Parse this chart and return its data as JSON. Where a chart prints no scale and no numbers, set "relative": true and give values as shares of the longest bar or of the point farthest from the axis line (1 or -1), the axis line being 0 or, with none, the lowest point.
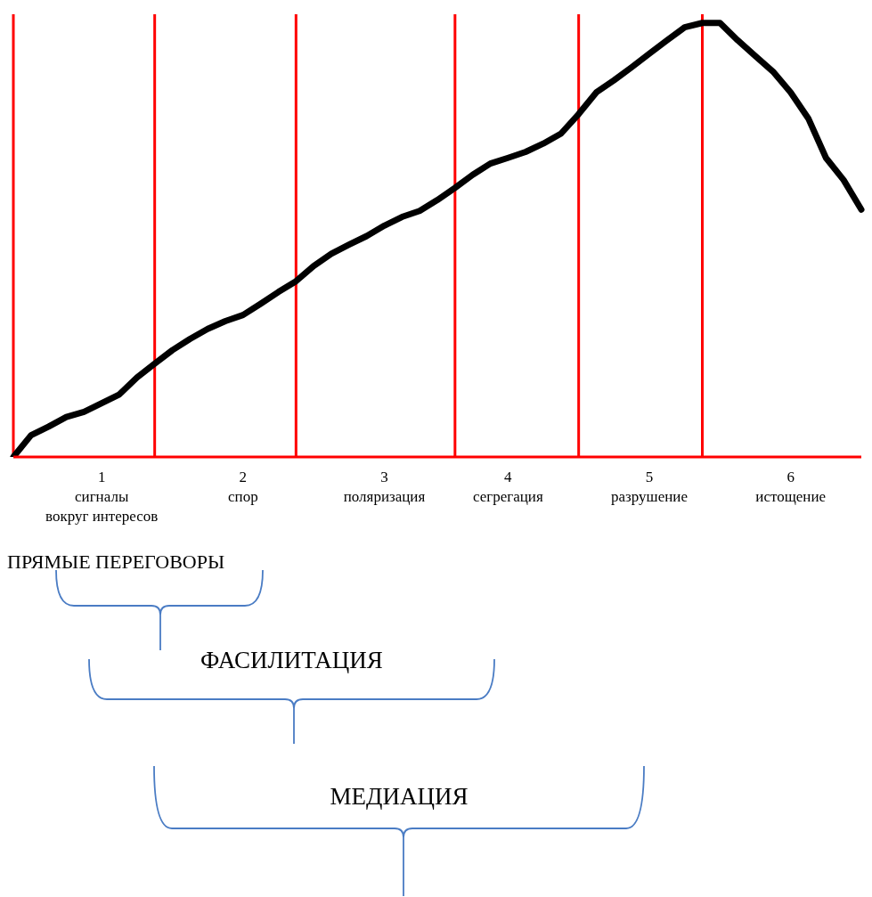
{
  "chart_data": {
    "type": "line",
    "relative": true,
    "categories": [
      null,
      null,
      null,
      null,
      null,
      "1\nсигналы\nвокруг интересов",
      null,
      null,
      null,
      null,
      null,
      null,
      null,
      "2\nспор",
      null,
      null,
      null,
      null,
      null,
      null,
      null,
      "3\nполяризация",
      null,
      null,
      null,
      null,
      null,
      null,
      "4\nсегрегация",
      null,
      null,
      null,
      null,
      null,
      null,
      null,
      "5\nразрушение",
      null,
      null,
      null,
      null,
      null,
      null,
      null,
      "6\nистощение",
      null,
      null,
      null,
      null
    ],
    "series": [
      {
        "color": "#000000",
        "values": [
          0,
          0.05,
          0.07,
          0.092,
          0.104,
          0.124,
          0.144,
          0.183,
          0.215,
          0.246,
          0.272,
          0.295,
          0.313,
          0.327,
          0.353,
          0.38,
          0.405,
          0.44,
          0.468,
          0.489,
          0.509,
          0.533,
          0.553,
          0.567,
          0.592,
          0.62,
          0.65,
          0.676,
          0.689,
          0.703,
          0.722,
          0.745,
          0.79,
          0.84,
          0.868,
          0.898,
          0.929,
          0.96,
          0.99,
          1,
          1,
          0.96,
          0.924,
          0.888,
          0.84,
          0.78,
          0.689,
          0.638,
          0.57
        ]
      }
    ],
    "grid": "x",
    "annotations": [
      "ПРЯМЫЕ ПЕРЕГОВОРЫ",
      "ФАСИЛИТАЦИЯ",
      "МЕДИАЦИЯ"
    ]
  }
}
